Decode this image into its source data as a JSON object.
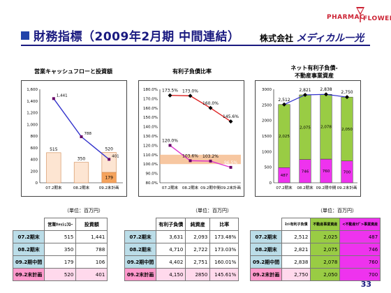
{
  "slide": {
    "title": "財務指標（2009年2月期 中間連結）",
    "company_prefix": "株式会社",
    "company_brand": "メディカル一光",
    "logo_line1": "PHARMAC",
    "logo_line2": "FLOWER",
    "page_number": "33",
    "accent_color": "#1a1a80"
  },
  "chart_data": [
    {
      "type": "bar",
      "title": "営業キャッシュフローと投資額",
      "categories": [
        "07.2期末",
        "08.2期末",
        "09.2末計画"
      ],
      "bars": [
        {
          "category": "07.2期末",
          "stack": [
            515
          ],
          "label": "515"
        },
        {
          "category": "08.2期末",
          "stack": [
            350
          ],
          "label": "350"
        },
        {
          "category": "09.2末計画",
          "stack": [
            179,
            341
          ],
          "label": "520",
          "sublabel": "179"
        }
      ],
      "series": [
        {
          "name": "投資額",
          "type": "line",
          "values": [
            1441,
            788,
            401
          ],
          "labels": [
            "1,441",
            "788",
            "401"
          ],
          "color": "#3333cc"
        }
      ],
      "ylim": [
        0,
        1600
      ],
      "yticks": [
        "0",
        "200",
        "400",
        "600",
        "800",
        "1,000",
        "1,200",
        "1,400",
        "1,600"
      ],
      "ytick_values": [
        0,
        200,
        400,
        600,
        800,
        1000,
        1200,
        1400,
        1600
      ]
    },
    {
      "type": "line",
      "title": "有利子負債比率",
      "categories": [
        "07.2期末",
        "08.2期末",
        "09.2期中間",
        "09.2末計画"
      ],
      "series": [
        {
          "name": "有利子負債比率",
          "values": [
            173.5,
            173.0,
            160.0,
            145.6
          ],
          "labels": [
            "173.5%",
            "173.0%",
            "160.0%",
            "145.6%"
          ],
          "color": "#dd2222"
        },
        {
          "name": "純資産比",
          "values": [
            120.0,
            103.6,
            103.2,
            96.5
          ],
          "labels": [
            "120.0%",
            "103.6%",
            "103.2%",
            "96.5%"
          ],
          "color": "#dd33cc"
        }
      ],
      "band": [
        100,
        110
      ],
      "ylim": [
        80,
        180
      ],
      "yticks": [
        "80.0%",
        "90.0%",
        "100.0%",
        "110.0%",
        "120.0%",
        "130.0%",
        "140.0%",
        "150.0%",
        "160.0%",
        "170.0%",
        "180.0%"
      ],
      "ytick_values": [
        80,
        90,
        100,
        110,
        120,
        130,
        140,
        150,
        160,
        170,
        180
      ]
    },
    {
      "type": "bar",
      "title_lines": [
        "ネット有利子負債-",
        "不動産事業資産"
      ],
      "categories": [
        "07.2期末",
        "08.2期末",
        "09.2期中間",
        "09.2末計画"
      ],
      "series": [
        {
          "name": "<不動産事業>事業資産",
          "values": [
            487,
            746,
            760,
            700
          ],
          "labels": [
            "487",
            "746",
            "760",
            "700"
          ],
          "color": "#ee33ee"
        },
        {
          "name": "ネット有利子負債",
          "values": [
            2025,
            2075,
            2078,
            2050
          ],
          "labels": [
            "2,025",
            "2,075",
            "2,078",
            "2,050"
          ],
          "color": "#99cc44"
        }
      ],
      "totals": {
        "values": [
          2512,
          2821,
          2838,
          2750
        ],
        "labels": [
          "2,512",
          "2,821",
          "2,838",
          "2,750"
        ],
        "color": "#3333cc"
      },
      "ylim": [
        0,
        3000
      ],
      "yticks": [
        "0",
        "500",
        "1000",
        "1500",
        "2000",
        "2500",
        "3000"
      ],
      "ytick_values": [
        0,
        500,
        1000,
        1500,
        2000,
        2500,
        3000
      ]
    }
  ],
  "tables": [
    {
      "unit": "（単位：百万円）",
      "headers": [
        "営業ｷｬｯｼｭﾌﾛｰ",
        "投資額"
      ],
      "rows": [
        {
          "label": "07.2期末",
          "cells": [
            "515",
            "1,441"
          ]
        },
        {
          "label": "08.2期末",
          "cells": [
            "350",
            "788"
          ]
        },
        {
          "label": "09.2期中間",
          "cells": [
            "179",
            "106"
          ]
        },
        {
          "label": "09.2末計画",
          "cells": [
            "520",
            "401"
          ]
        }
      ]
    },
    {
      "unit": "（単位：百万円）",
      "headers": [
        "有利子負債",
        "純資産",
        "比率"
      ],
      "rows": [
        {
          "label": "07.2期末",
          "cells": [
            "3,631",
            "2,093",
            "173.48%"
          ]
        },
        {
          "label": "08.2期末",
          "cells": [
            "4,710",
            "2,722",
            "173.03%"
          ]
        },
        {
          "label": "09.2期中間",
          "cells": [
            "4,402",
            "2,751",
            "160.01%"
          ]
        },
        {
          "label": "09.2末計画",
          "cells": [
            "4,150",
            "2850",
            "145.61%"
          ]
        }
      ]
    },
    {
      "unit": "（単位：百万円）",
      "headers": [
        "ﾈｯﾄ有利子負債",
        "不動産事業資産",
        "<不動産ｾｸﾞ>事業資産"
      ],
      "rows": [
        {
          "label": "07.2期末",
          "cells": [
            "2,512",
            "2,025",
            "487"
          ]
        },
        {
          "label": "08.2期末",
          "cells": [
            "2,821",
            "2,075",
            "746"
          ]
        },
        {
          "label": "09.2期中間",
          "cells": [
            "2,838",
            "2,078",
            "760"
          ]
        },
        {
          "label": "09.2末計画",
          "cells": [
            "2,750",
            "2,050",
            "700"
          ]
        }
      ]
    }
  ]
}
